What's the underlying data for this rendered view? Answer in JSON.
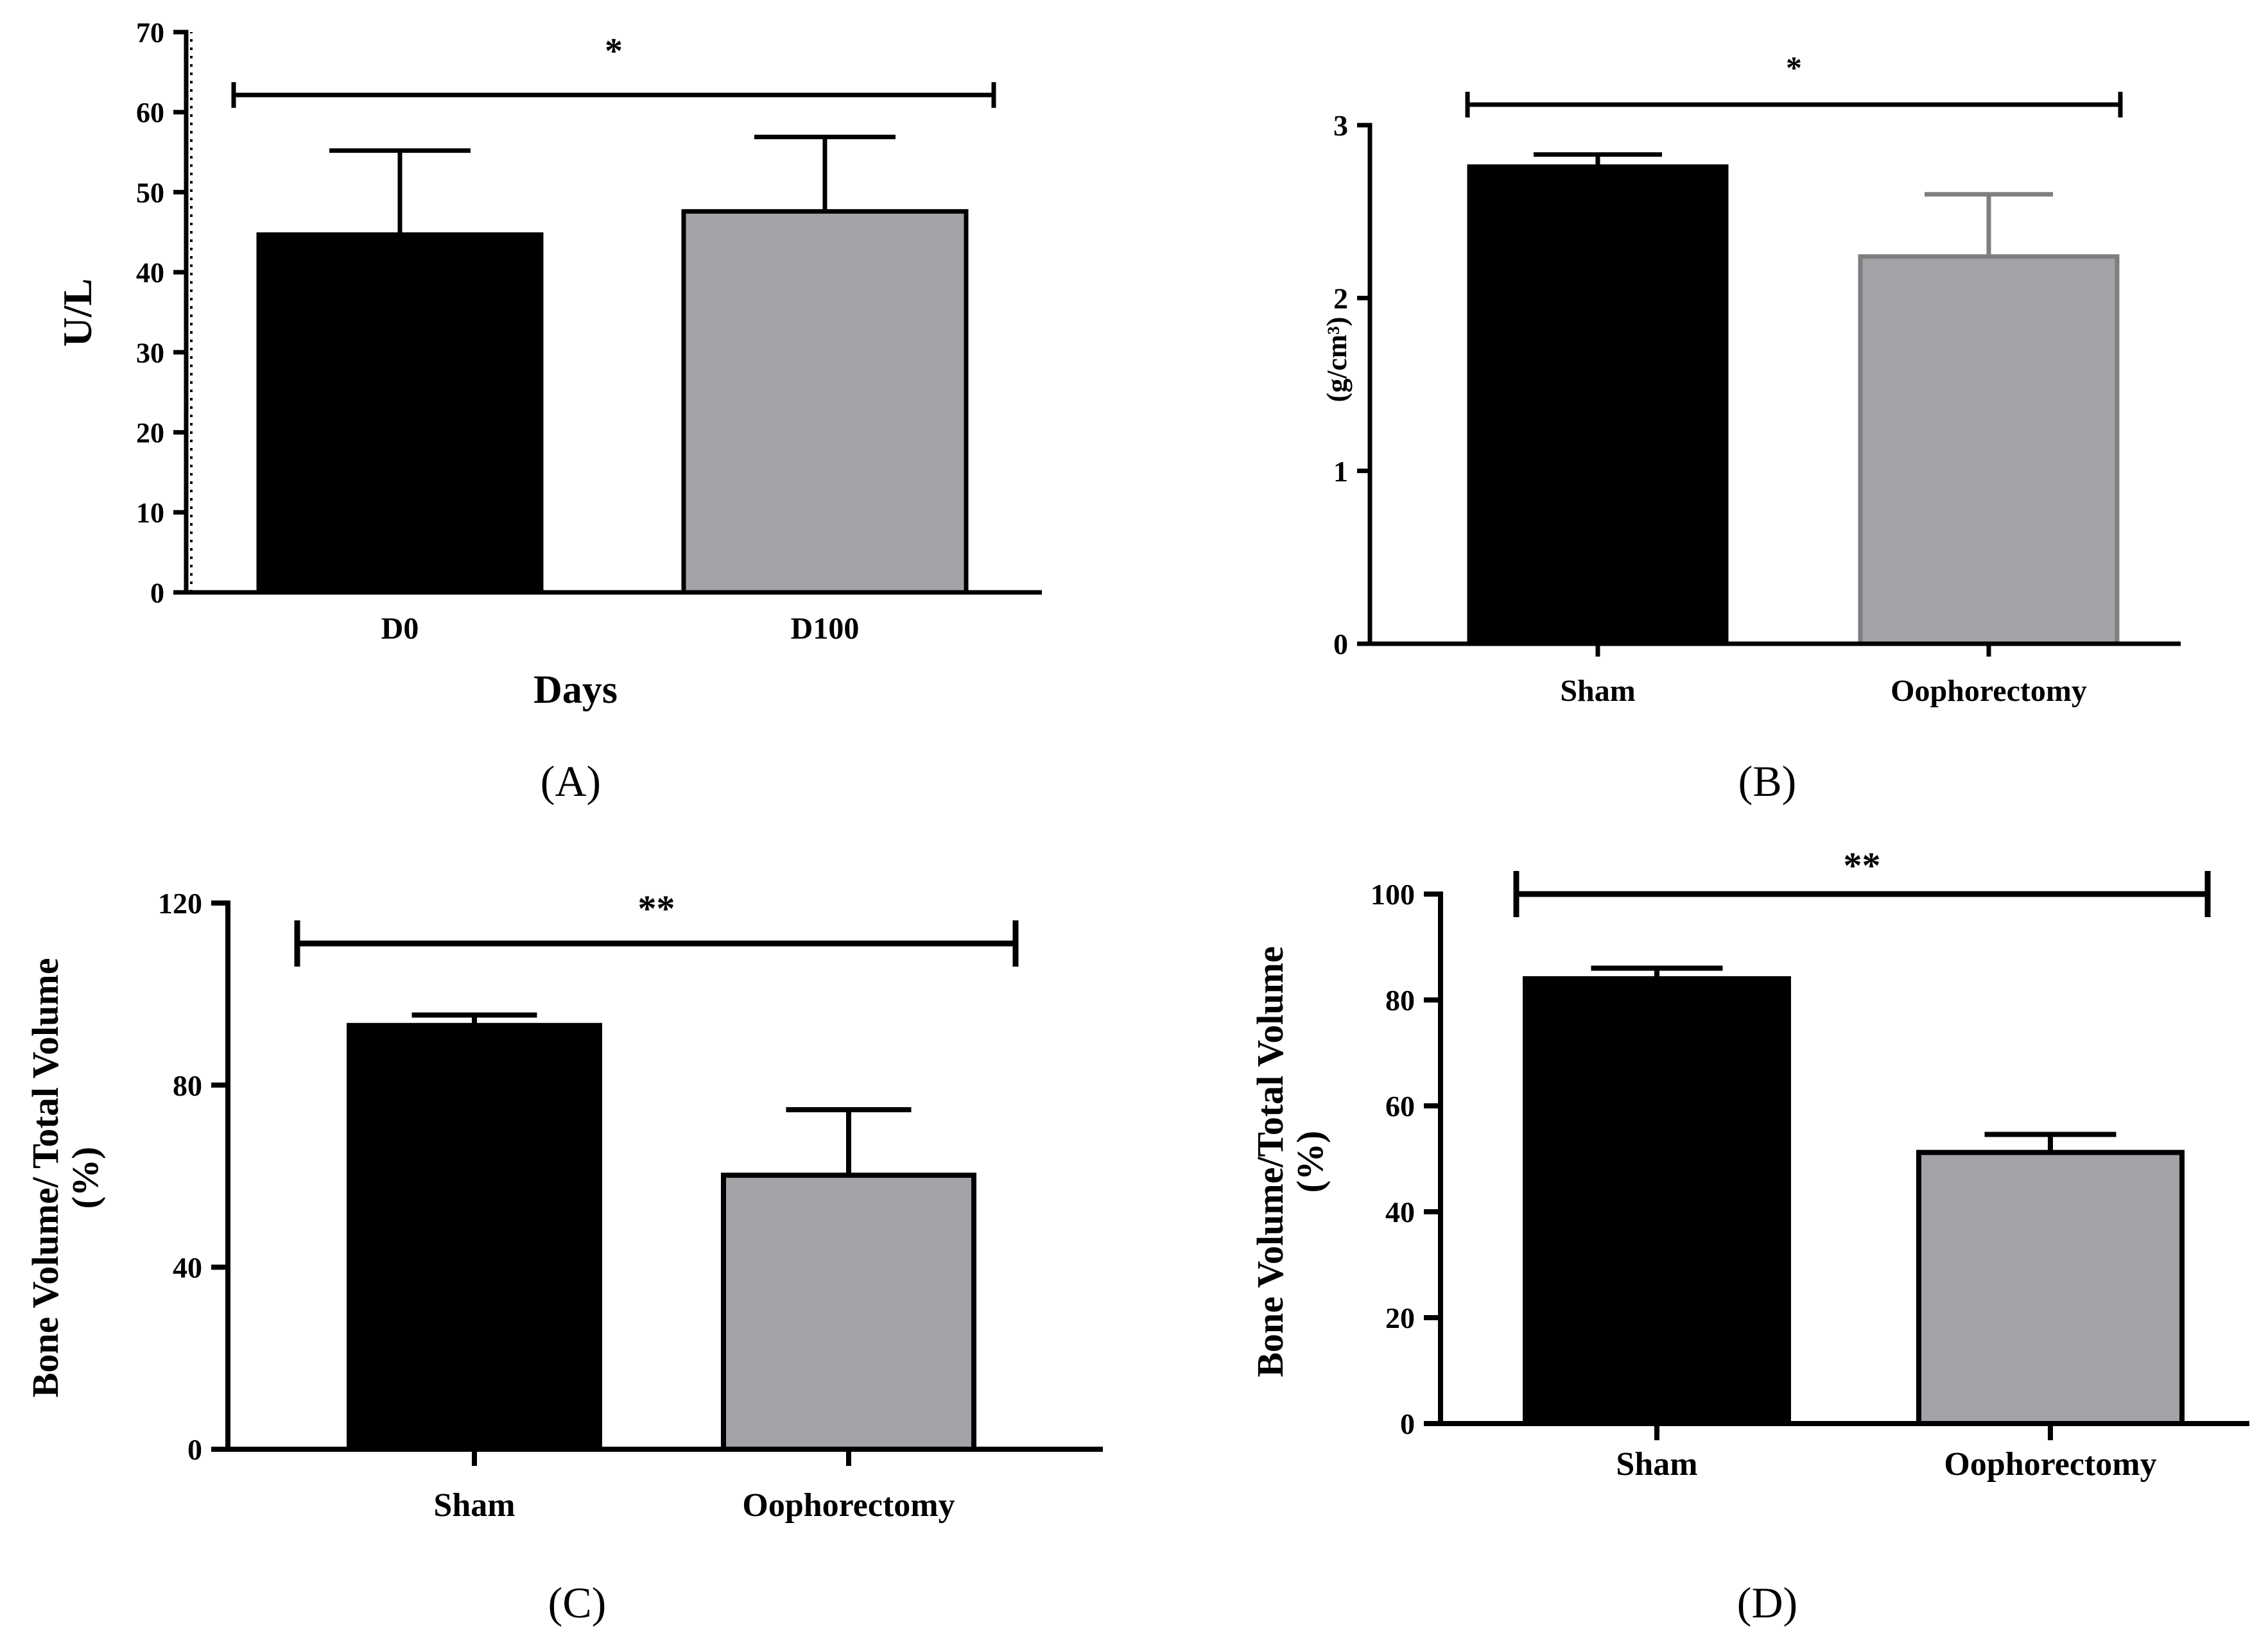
{
  "colors": {
    "black": "#000000",
    "gray_fill": "#a3a2a7",
    "gray_edge": "#7f7f7f"
  },
  "chart_data": [
    {
      "panel": "A",
      "label": "(A)",
      "type": "bar",
      "title": "",
      "xlabel": "Days",
      "ylabel": "U/L",
      "ylim": [
        0,
        70
      ],
      "yticks": [
        0,
        10,
        20,
        30,
        40,
        50,
        60,
        70
      ],
      "categories": [
        "D0",
        "D100"
      ],
      "values": [
        44.7,
        47.6
      ],
      "errors": [
        10.5,
        9.3
      ],
      "significance": "*"
    },
    {
      "panel": "B",
      "label": "(B)",
      "type": "bar",
      "title": "",
      "xlabel": "",
      "ylabel": "(g/cm³)",
      "ylim": [
        0,
        3
      ],
      "yticks": [
        0,
        1,
        2,
        3
      ],
      "categories": [
        "Sham",
        "Oophorectomy"
      ],
      "values": [
        2.76,
        2.24
      ],
      "errors": [
        0.07,
        0.36
      ],
      "significance": "*"
    },
    {
      "panel": "C",
      "label": "(C)",
      "type": "bar",
      "title": "",
      "xlabel": "",
      "ylabel": [
        "Bone Volume/ Total Volume",
        "(%)"
      ],
      "ylim": [
        0,
        120
      ],
      "yticks": [
        0,
        40,
        80,
        120
      ],
      "categories": [
        "Sham",
        "Oophorectomy"
      ],
      "values": [
        93.1,
        60.2
      ],
      "errors": [
        2.3,
        14.4
      ],
      "significance": "**"
    },
    {
      "panel": "D",
      "label": "(D)",
      "type": "bar",
      "title": "",
      "xlabel": "",
      "ylabel": [
        "Bone Volume/Total Volume",
        "(%)"
      ],
      "ylim": [
        0,
        100
      ],
      "yticks": [
        0,
        20,
        40,
        60,
        80,
        100
      ],
      "categories": [
        "Sham",
        "Oophorectomy"
      ],
      "values": [
        84.0,
        51.2
      ],
      "errors": [
        2.0,
        3.4
      ],
      "significance": "**"
    }
  ]
}
